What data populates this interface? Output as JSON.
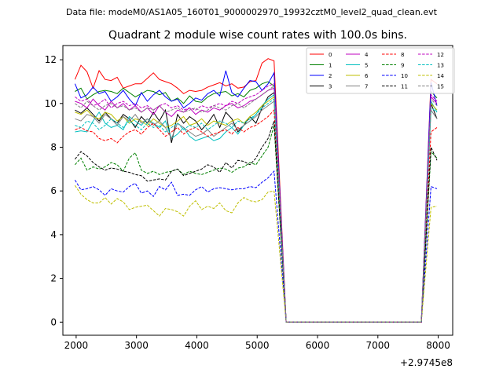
{
  "chart_data": {
    "type": "line",
    "suptitle": "Data file: modeM0/AS1A05_160T01_9000002970_19932cztM0_level2_quad_clean.evt",
    "title": "Quadrant 2 module wise count rates with 100.0s bins.",
    "xlabel": "",
    "ylabel": "",
    "x_offset_text": "+2.9745e8",
    "xlim": [
      1780,
      8240
    ],
    "ylim": [
      -0.6,
      12.65
    ],
    "x_ticks": [
      2000,
      3000,
      4000,
      5000,
      6000,
      7000,
      8000
    ],
    "y_ticks": [
      0,
      2,
      4,
      6,
      8,
      10,
      12
    ],
    "x": [
      1980,
      2080,
      2180,
      2280,
      2380,
      2480,
      2580,
      2680,
      2780,
      2880,
      2980,
      3080,
      3180,
      3280,
      3380,
      3480,
      3580,
      3680,
      3780,
      3880,
      3980,
      4080,
      4180,
      4280,
      4380,
      4480,
      4580,
      4680,
      4780,
      4880,
      4980,
      5080,
      5180,
      5280,
      5480,
      7720,
      7880,
      7980
    ],
    "legend": {
      "location": "upper-right",
      "columns": 4
    },
    "series": [
      {
        "name": "0",
        "color": "#ff0000",
        "dash": "solid",
        "values": [
          11.1,
          11.75,
          11.45,
          10.7,
          11.5,
          11.1,
          11.05,
          11.2,
          10.7,
          10.8,
          10.9,
          10.9,
          11.15,
          11.4,
          11.1,
          11.0,
          10.9,
          10.7,
          10.45,
          10.6,
          10.55,
          10.6,
          10.75,
          10.85,
          10.95,
          10.8,
          10.9,
          10.7,
          10.75,
          11.0,
          11.05,
          11.85,
          12.05,
          11.95,
          0.0,
          0.0,
          11.1,
          10.9
        ]
      },
      {
        "name": "1",
        "color": "#008000",
        "dash": "solid",
        "values": [
          10.55,
          10.7,
          10.2,
          10.4,
          10.55,
          10.6,
          10.55,
          10.45,
          10.7,
          10.5,
          10.3,
          10.45,
          10.6,
          10.55,
          10.4,
          10.5,
          10.1,
          10.25,
          10.0,
          10.35,
          10.1,
          10.05,
          10.3,
          10.45,
          10.5,
          10.55,
          10.35,
          10.45,
          10.3,
          10.6,
          10.7,
          10.9,
          11.0,
          10.8,
          0.0,
          0.0,
          10.55,
          10.25
        ]
      },
      {
        "name": "2",
        "color": "#0000ff",
        "dash": "solid",
        "values": [
          10.9,
          10.25,
          10.4,
          10.75,
          10.45,
          10.55,
          10.1,
          10.3,
          10.6,
          10.2,
          9.9,
          10.5,
          10.1,
          10.4,
          10.6,
          10.3,
          10.1,
          10.2,
          9.8,
          10.0,
          10.25,
          10.15,
          10.45,
          10.6,
          10.35,
          11.5,
          10.5,
          10.3,
          10.7,
          11.05,
          11.0,
          10.6,
          10.9,
          11.4,
          0.0,
          0.0,
          10.95,
          9.9
        ]
      },
      {
        "name": "3",
        "color": "#000000",
        "dash": "solid",
        "values": [
          9.7,
          9.55,
          9.8,
          9.5,
          9.2,
          9.6,
          9.3,
          9.1,
          9.5,
          9.3,
          8.9,
          9.4,
          9.1,
          9.6,
          9.2,
          9.7,
          8.2,
          9.5,
          9.1,
          9.4,
          9.2,
          8.8,
          9.1,
          9.5,
          8.9,
          9.6,
          9.3,
          8.7,
          9.0,
          9.4,
          9.1,
          9.8,
          10.3,
          10.5,
          0.0,
          0.0,
          10.0,
          9.3
        ]
      },
      {
        "name": "4",
        "color": "#bf00bf",
        "dash": "solid",
        "values": [
          10.1,
          10.0,
          9.8,
          10.2,
          9.9,
          9.7,
          10.1,
          9.8,
          10.0,
          9.7,
          9.9,
          9.6,
          9.8,
          9.5,
          9.9,
          9.6,
          9.4,
          9.7,
          9.6,
          9.8,
          9.5,
          9.7,
          9.6,
          9.8,
          9.7,
          9.9,
          10.0,
          9.8,
          9.9,
          10.1,
          10.2,
          10.4,
          10.6,
          10.7,
          0.0,
          0.0,
          10.3,
          10.0
        ]
      },
      {
        "name": "5",
        "color": "#00bfbf",
        "dash": "solid",
        "values": [
          8.7,
          8.75,
          8.7,
          9.2,
          9.6,
          9.1,
          8.9,
          9.0,
          8.8,
          9.4,
          9.2,
          9.0,
          9.3,
          9.1,
          8.9,
          9.2,
          8.4,
          8.6,
          8.9,
          8.5,
          8.3,
          8.4,
          8.5,
          8.3,
          8.4,
          8.7,
          8.9,
          8.6,
          9.0,
          9.2,
          9.5,
          9.9,
          10.2,
          10.4,
          0.0,
          0.0,
          10.1,
          9.6
        ]
      },
      {
        "name": "6",
        "color": "#bfbf00",
        "dash": "solid",
        "values": [
          9.6,
          9.5,
          9.7,
          9.4,
          9.3,
          9.6,
          9.5,
          9.2,
          9.4,
          9.1,
          9.3,
          9.2,
          9.0,
          9.3,
          9.1,
          8.9,
          9.0,
          9.2,
          9.4,
          9.0,
          9.1,
          9.3,
          9.0,
          9.2,
          9.1,
          9.0,
          9.2,
          9.3,
          9.1,
          9.4,
          9.6,
          9.9,
          10.1,
          10.3,
          0.0,
          0.0,
          10.0,
          9.7
        ]
      },
      {
        "name": "7",
        "color": "#808080",
        "dash": "solid",
        "values": [
          9.3,
          9.2,
          9.5,
          9.4,
          9.1,
          9.5,
          9.3,
          9.0,
          9.4,
          9.2,
          9.5,
          9.1,
          9.3,
          9.0,
          9.2,
          8.9,
          8.4,
          9.1,
          8.9,
          8.7,
          8.5,
          8.6,
          8.8,
          8.5,
          8.7,
          8.9,
          9.1,
          8.8,
          9.0,
          9.2,
          9.4,
          9.7,
          9.9,
          10.1,
          0.0,
          0.0,
          9.7,
          9.3
        ]
      },
      {
        "name": "8",
        "color": "#ff0000",
        "dash": "dashed",
        "values": [
          8.8,
          8.9,
          8.75,
          8.7,
          8.4,
          8.3,
          8.4,
          8.2,
          8.5,
          8.7,
          8.8,
          8.6,
          8.9,
          9.1,
          8.8,
          8.5,
          8.7,
          8.9,
          8.6,
          8.8,
          8.9,
          8.7,
          8.5,
          8.6,
          8.7,
          8.8,
          8.6,
          8.9,
          8.7,
          8.9,
          9.0,
          9.2,
          9.4,
          9.7,
          0.0,
          0.0,
          8.7,
          8.9
        ]
      },
      {
        "name": "9",
        "color": "#008000",
        "dash": "dashed",
        "values": [
          7.2,
          7.5,
          6.95,
          7.1,
          7.0,
          7.1,
          7.3,
          7.2,
          6.9,
          7.5,
          7.75,
          6.95,
          6.8,
          6.9,
          6.75,
          6.85,
          6.9,
          7.0,
          6.75,
          6.9,
          6.8,
          6.75,
          6.85,
          6.95,
          7.05,
          7.0,
          6.85,
          7.05,
          7.1,
          7.3,
          7.2,
          7.6,
          8.0,
          9.0,
          0.0,
          0.0,
          7.8,
          7.5
        ]
      },
      {
        "name": "10",
        "color": "#0000ff",
        "dash": "dashed",
        "values": [
          6.5,
          6.05,
          6.1,
          6.2,
          6.05,
          5.8,
          6.1,
          6.0,
          5.95,
          6.2,
          6.35,
          5.9,
          6.0,
          5.75,
          6.2,
          6.05,
          6.4,
          5.8,
          5.85,
          5.8,
          6.05,
          6.2,
          5.95,
          6.1,
          6.15,
          6.1,
          6.05,
          6.1,
          6.1,
          6.2,
          6.15,
          6.4,
          6.6,
          6.9,
          0.0,
          0.0,
          6.2,
          6.1
        ]
      },
      {
        "name": "11",
        "color": "#000000",
        "dash": "dashed",
        "values": [
          7.45,
          7.8,
          7.6,
          7.3,
          7.1,
          6.95,
          7.05,
          7.0,
          6.9,
          6.85,
          6.75,
          6.7,
          6.45,
          6.5,
          6.55,
          6.5,
          6.9,
          7.0,
          6.7,
          6.8,
          6.9,
          7.0,
          7.2,
          7.1,
          6.85,
          7.3,
          7.05,
          7.4,
          7.35,
          7.2,
          7.5,
          8.0,
          8.4,
          9.2,
          0.0,
          0.0,
          8.0,
          7.4
        ]
      },
      {
        "name": "12",
        "color": "#bf00bf",
        "dash": "dashed",
        "values": [
          10.3,
          10.1,
          10.2,
          9.9,
          10.0,
          10.2,
          9.8,
          10.0,
          10.1,
          9.9,
          10.0,
          9.8,
          9.9,
          9.7,
          9.9,
          10.0,
          9.8,
          9.9,
          9.7,
          9.8,
          9.7,
          9.9,
          9.8,
          9.9,
          10.0,
          9.9,
          10.1,
          10.0,
          10.2,
          10.3,
          10.4,
          10.6,
          10.8,
          10.9,
          0.0,
          0.0,
          10.4,
          10.1
        ]
      },
      {
        "name": "13",
        "color": "#00bfbf",
        "dash": "dashed",
        "values": [
          9.0,
          8.9,
          9.2,
          9.1,
          8.8,
          9.0,
          9.3,
          9.1,
          8.9,
          9.2,
          9.0,
          8.8,
          9.1,
          8.9,
          9.0,
          8.7,
          8.9,
          9.1,
          8.8,
          9.0,
          8.9,
          9.1,
          8.8,
          9.0,
          9.2,
          9.1,
          8.9,
          9.2,
          9.1,
          9.3,
          9.5,
          9.8,
          10.0,
          10.2,
          0.0,
          0.0,
          9.8,
          9.6
        ]
      },
      {
        "name": "14",
        "color": "#bfbf00",
        "dash": "dashed",
        "values": [
          6.25,
          5.85,
          5.6,
          5.45,
          5.45,
          5.7,
          5.4,
          5.65,
          5.5,
          5.15,
          5.25,
          5.3,
          5.35,
          5.1,
          4.85,
          5.2,
          5.15,
          5.05,
          4.85,
          5.3,
          5.55,
          5.15,
          5.3,
          5.2,
          5.45,
          5.1,
          5.0,
          5.45,
          5.7,
          5.55,
          5.5,
          5.6,
          5.95,
          6.0,
          0.0,
          0.0,
          5.25,
          5.3
        ]
      },
      {
        "name": "15",
        "color": "#808080",
        "dash": "dashed",
        "values": [
          10.0,
          9.8,
          10.1,
          9.9,
          9.7,
          9.9,
          10.0,
          9.8,
          9.9,
          9.7,
          9.8,
          9.6,
          9.8,
          9.7,
          9.9,
          9.6,
          9.7,
          9.8,
          9.6,
          9.7,
          9.8,
          9.6,
          9.7,
          9.9,
          9.8,
          9.7,
          9.9,
          10.0,
          9.8,
          10.0,
          10.2,
          10.4,
          10.6,
          10.8,
          0.0,
          0.0,
          10.2,
          9.9
        ]
      }
    ]
  }
}
